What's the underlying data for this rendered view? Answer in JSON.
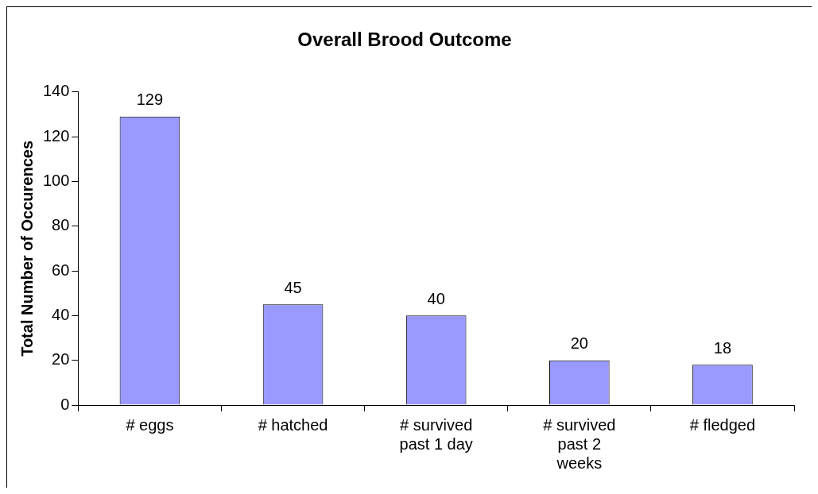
{
  "chart_data": {
    "type": "bar",
    "title": "Overall Brood Outcome",
    "ylabel": "Total Number of Occurences",
    "categories": [
      "# eggs",
      "# hatched",
      "# survived past 1 day",
      "# survived past 2 weeks",
      "# fledged"
    ],
    "values": [
      129,
      45,
      40,
      20,
      18
    ],
    "color": "#9999ff",
    "ylim": [
      0,
      140
    ],
    "yticks": [
      0,
      20,
      40,
      60,
      80,
      100,
      120,
      140
    ],
    "data_labels": true
  }
}
